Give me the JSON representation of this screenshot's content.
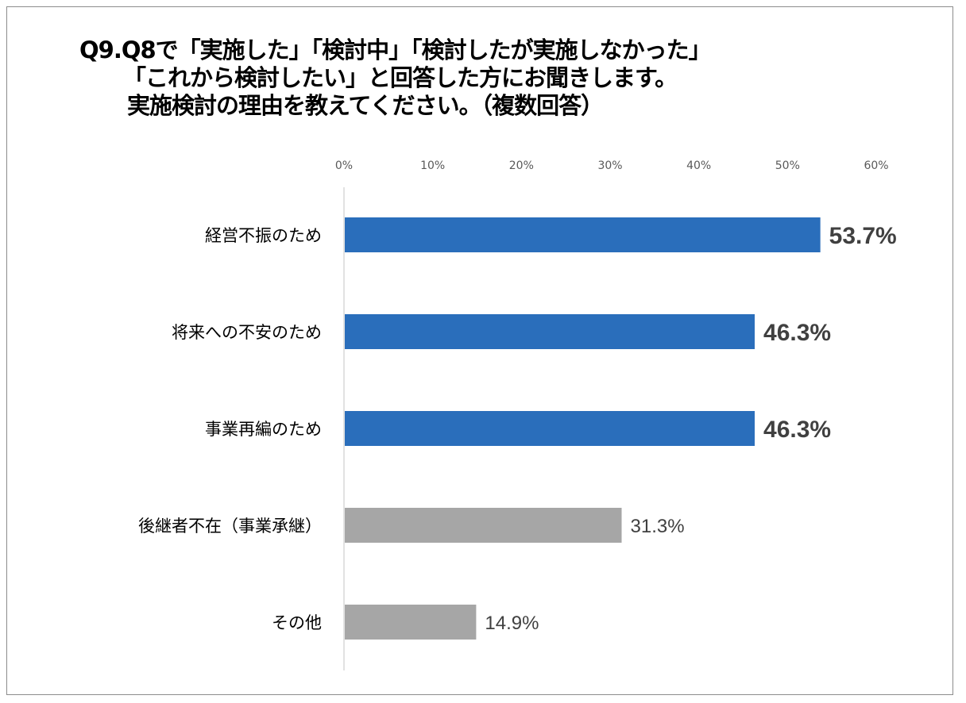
{
  "chart_data": {
    "type": "bar",
    "orientation": "horizontal",
    "title_lines": [
      "Q9.Q8で「実施した」「検討中」「検討したが実施しなかった」",
      "「これから検討したい」と回答した方にお聞きします。",
      "実施検討の理由を教えてください。（複数回答）"
    ],
    "categories": [
      "経営不振のため",
      "将来への不安のため",
      "事業再編のため",
      "後継者不在（事業承継）",
      "その他"
    ],
    "values": [
      53.7,
      46.3,
      46.3,
      31.3,
      14.9
    ],
    "data_labels": [
      "53.7%",
      "46.3%",
      "46.3%",
      "31.3%",
      "14.9%"
    ],
    "highlighted": [
      true,
      true,
      true,
      false,
      false
    ],
    "xlim": [
      0,
      60
    ],
    "x_ticks": [
      0,
      10,
      20,
      30,
      40,
      50,
      60
    ],
    "x_tick_labels": [
      "0%",
      "10%",
      "20%",
      "30%",
      "40%",
      "50%",
      "60%"
    ],
    "xlabel": "",
    "ylabel": "",
    "grid": false,
    "colors": {
      "highlight": "#2a6ebb",
      "normal": "#a6a6a6",
      "label_highlight": "#404040",
      "label_normal": "#404040"
    }
  }
}
